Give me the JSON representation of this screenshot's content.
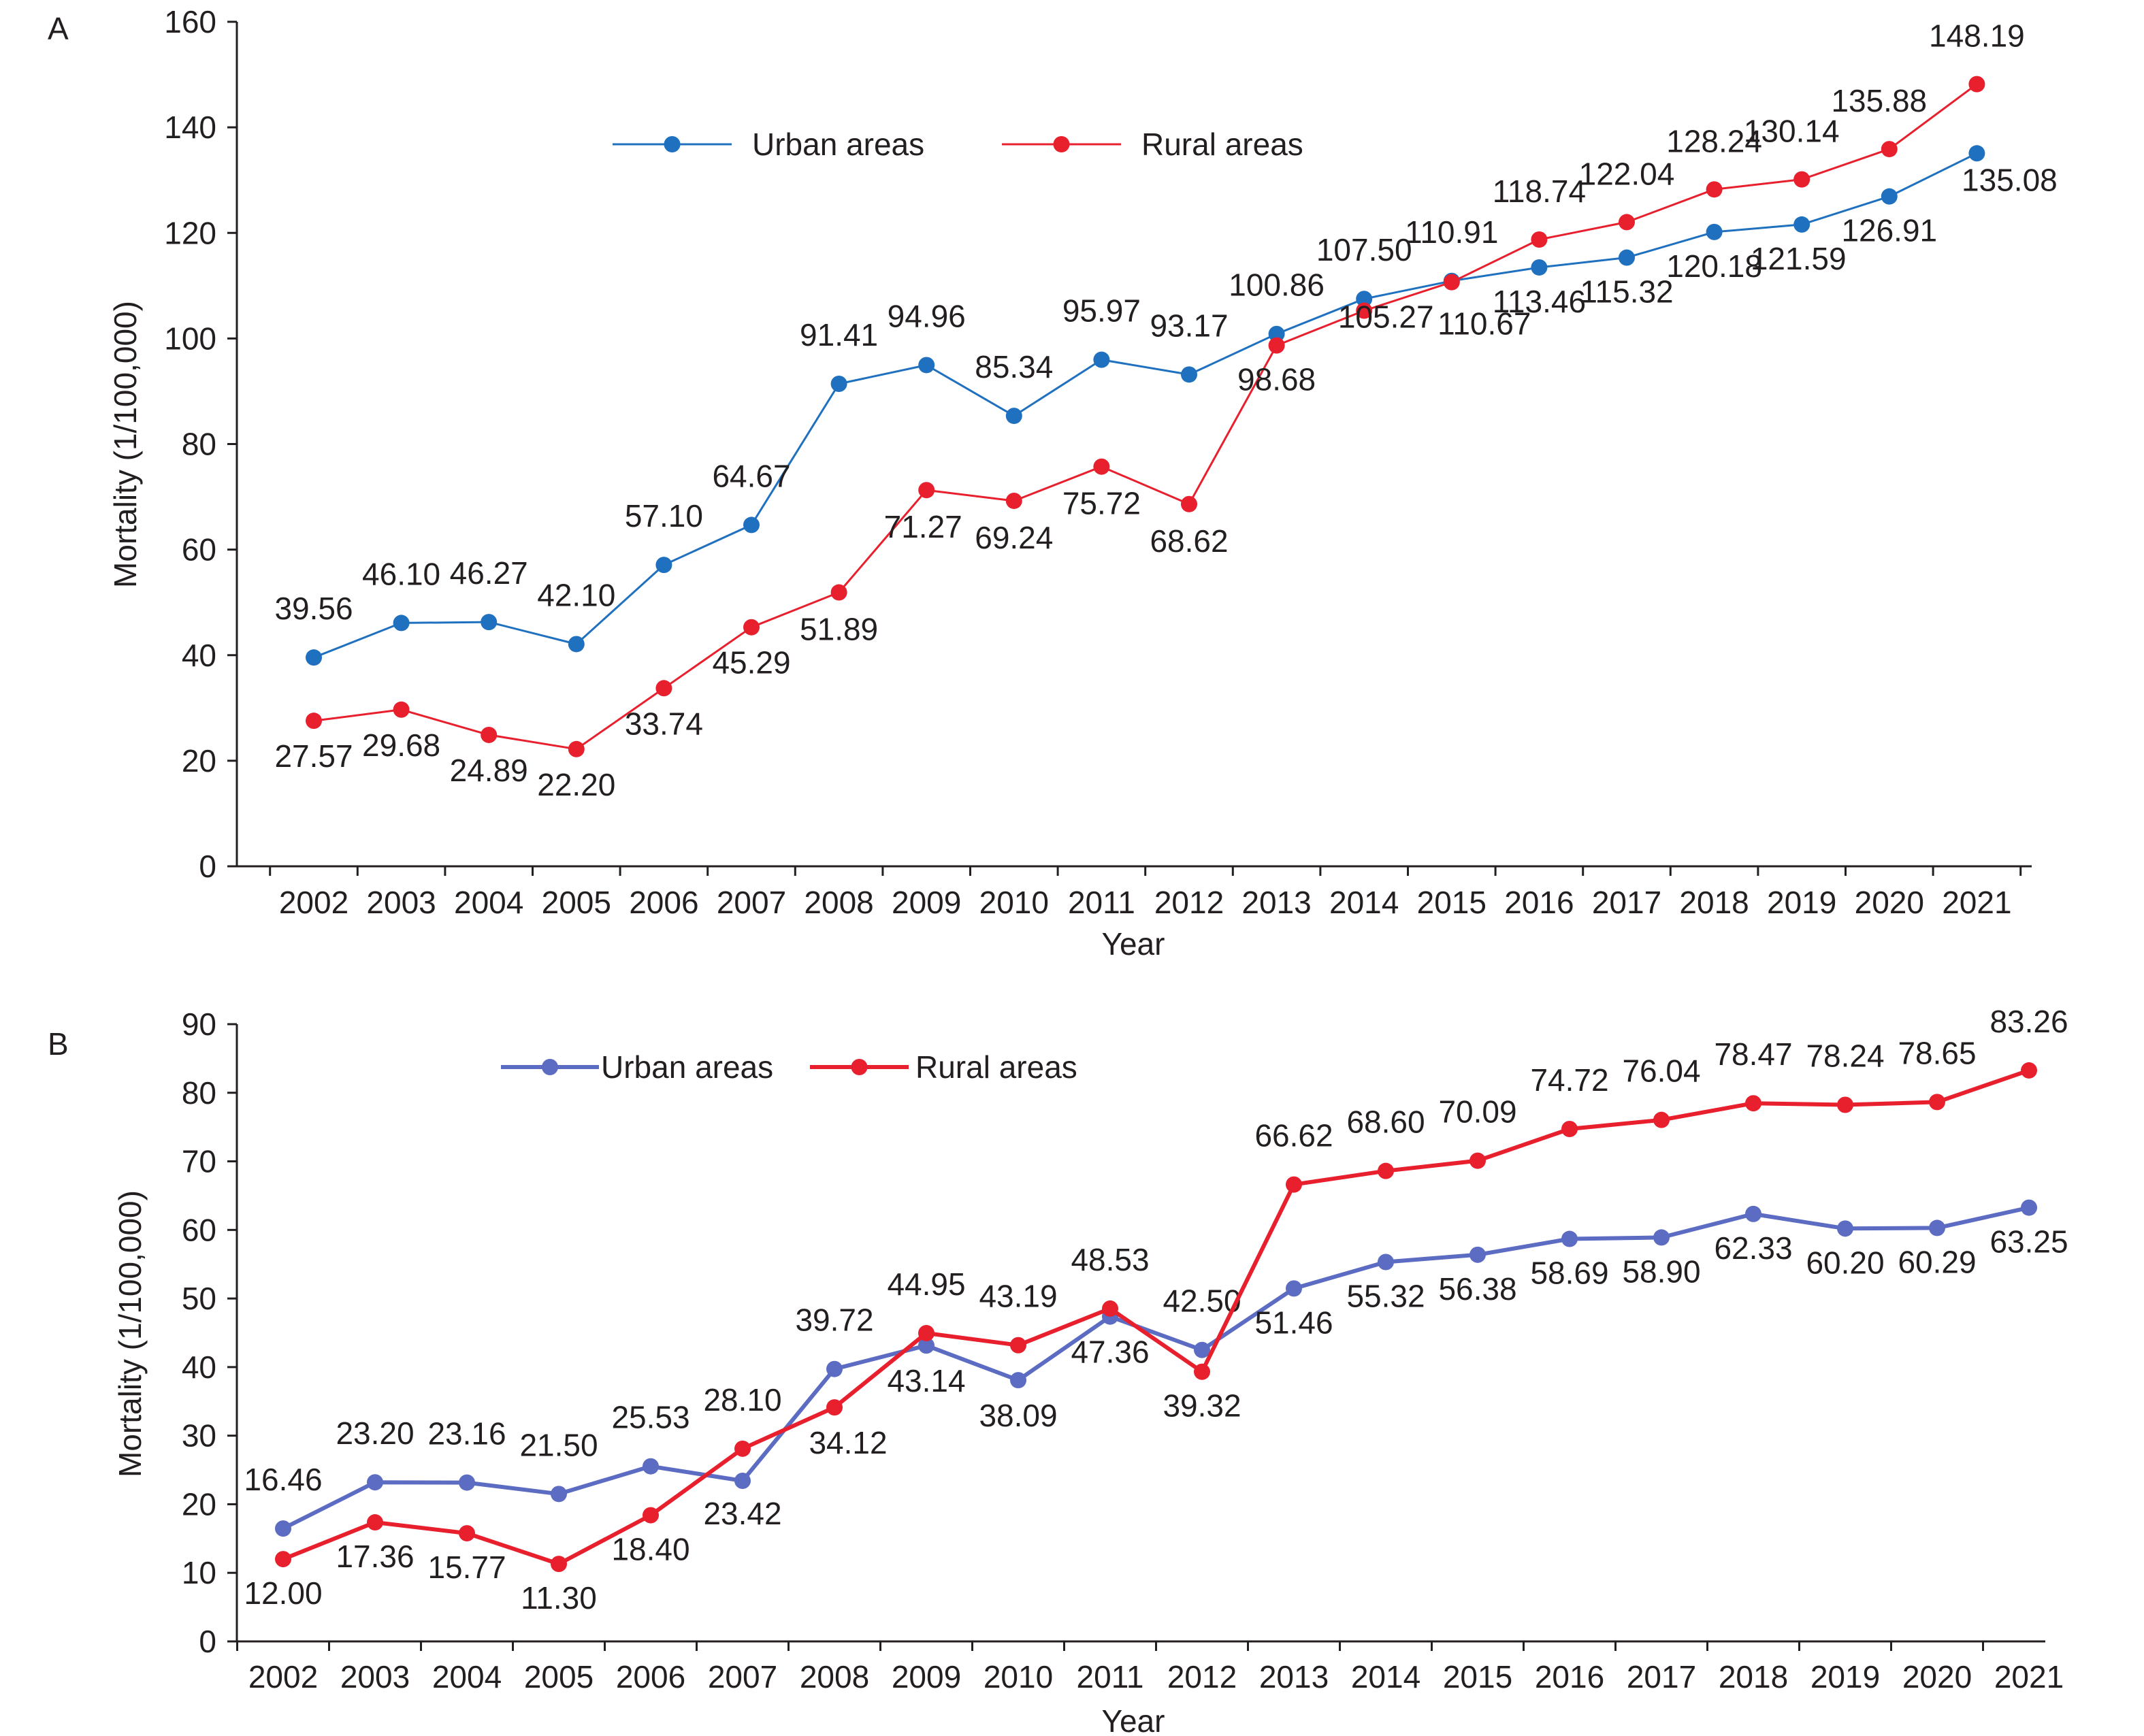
{
  "colors": {
    "axis": "#231f20",
    "text": "#231f20",
    "panelA": {
      "Urban areas": "#1f71bf",
      "Rural areas": "#e8202e"
    },
    "panelB": {
      "Urban areas": "#5b6cc2",
      "Rural areas": "#e8202e"
    }
  },
  "chart_data": [
    {
      "panel_label": "A",
      "type": "line",
      "title": "",
      "xlabel": "Year",
      "ylabel": "Mortality (1/100,000)",
      "ylim": [
        0,
        160
      ],
      "y_ticks": [
        0,
        20,
        40,
        60,
        80,
        100,
        120,
        140,
        160
      ],
      "grid": false,
      "legend_position": "top-center",
      "categories": [
        "2002",
        "2003",
        "2004",
        "2005",
        "2006",
        "2007",
        "2008",
        "2009",
        "2010",
        "2011",
        "2012",
        "2013",
        "2014",
        "2015",
        "2016",
        "2017",
        "2018",
        "2019",
        "2020",
        "2021"
      ],
      "series": [
        {
          "name": "Urban areas",
          "values": [
            39.56,
            46.1,
            46.27,
            42.1,
            57.1,
            64.67,
            91.41,
            94.96,
            85.34,
            95.97,
            93.17,
            100.86,
            107.5,
            110.91,
            113.46,
            115.32,
            120.18,
            121.59,
            126.91,
            135.08
          ],
          "labels": [
            "39.56",
            "46.10",
            "46.27",
            "42.10",
            "57.10",
            "64.67",
            "91.41",
            "94.96",
            "85.34",
            "95.97",
            "93.17",
            "100.86",
            "107.50",
            "110.91",
            "113.46",
            "115.32",
            "120.18",
            "121.59",
            "126.91",
            "135.08"
          ]
        },
        {
          "name": "Rural areas",
          "values": [
            27.57,
            29.68,
            24.89,
            22.2,
            33.74,
            45.29,
            51.89,
            71.27,
            69.24,
            75.72,
            68.62,
            98.68,
            105.27,
            110.67,
            118.74,
            122.04,
            128.24,
            130.14,
            135.88,
            148.19
          ],
          "labels": [
            "27.57",
            "29.68",
            "24.89",
            "22.20",
            "33.74",
            "45.29",
            "51.89",
            "71.27",
            "69.24",
            "75.72",
            "68.62",
            "98.68",
            "105.27",
            "110.67",
            "118.74",
            "122.04",
            "128.24",
            "130.14",
            "135.88",
            "148.19"
          ]
        }
      ]
    },
    {
      "panel_label": "B",
      "type": "line",
      "title": "",
      "xlabel": "Year",
      "ylabel": "Mortality (1/100,000)",
      "ylim": [
        0,
        90
      ],
      "y_ticks": [
        0,
        10,
        20,
        30,
        40,
        50,
        60,
        70,
        80,
        90
      ],
      "grid": false,
      "legend_position": "top-left",
      "categories": [
        "2002",
        "2003",
        "2004",
        "2005",
        "2006",
        "2007",
        "2008",
        "2009",
        "2010",
        "2011",
        "2012",
        "2013",
        "2014",
        "2015",
        "2016",
        "2017",
        "2018",
        "2019",
        "2020",
        "2021"
      ],
      "series": [
        {
          "name": "Urban areas",
          "values": [
            16.46,
            23.2,
            23.16,
            21.5,
            25.53,
            23.42,
            39.72,
            43.14,
            38.09,
            47.36,
            42.5,
            51.46,
            55.32,
            56.38,
            58.69,
            58.9,
            62.33,
            60.2,
            60.29,
            63.25
          ],
          "labels": [
            "16.46",
            "23.20",
            "23.16",
            "21.50",
            "25.53",
            "23.42",
            "39.72",
            "43.14",
            "38.09",
            "47.36",
            "42.50",
            "51.46",
            "55.32",
            "56.38",
            "58.69",
            "58.90",
            "62.33",
            "60.20",
            "60.29",
            "63.25"
          ]
        },
        {
          "name": "Rural areas",
          "values": [
            12.0,
            17.36,
            15.77,
            11.3,
            18.4,
            28.1,
            34.12,
            44.95,
            43.19,
            48.53,
            39.32,
            66.62,
            68.6,
            70.09,
            74.72,
            76.04,
            78.47,
            78.24,
            78.65,
            83.26
          ],
          "labels": [
            "12.00",
            "17.36",
            "15.77",
            "11.30",
            "18.40",
            "28.10",
            "34.12",
            "44.95",
            "43.19",
            "48.53",
            "39.32",
            "66.62",
            "68.60",
            "70.09",
            "74.72",
            "76.04",
            "78.47",
            "78.24",
            "78.65",
            "83.26"
          ]
        }
      ]
    }
  ]
}
